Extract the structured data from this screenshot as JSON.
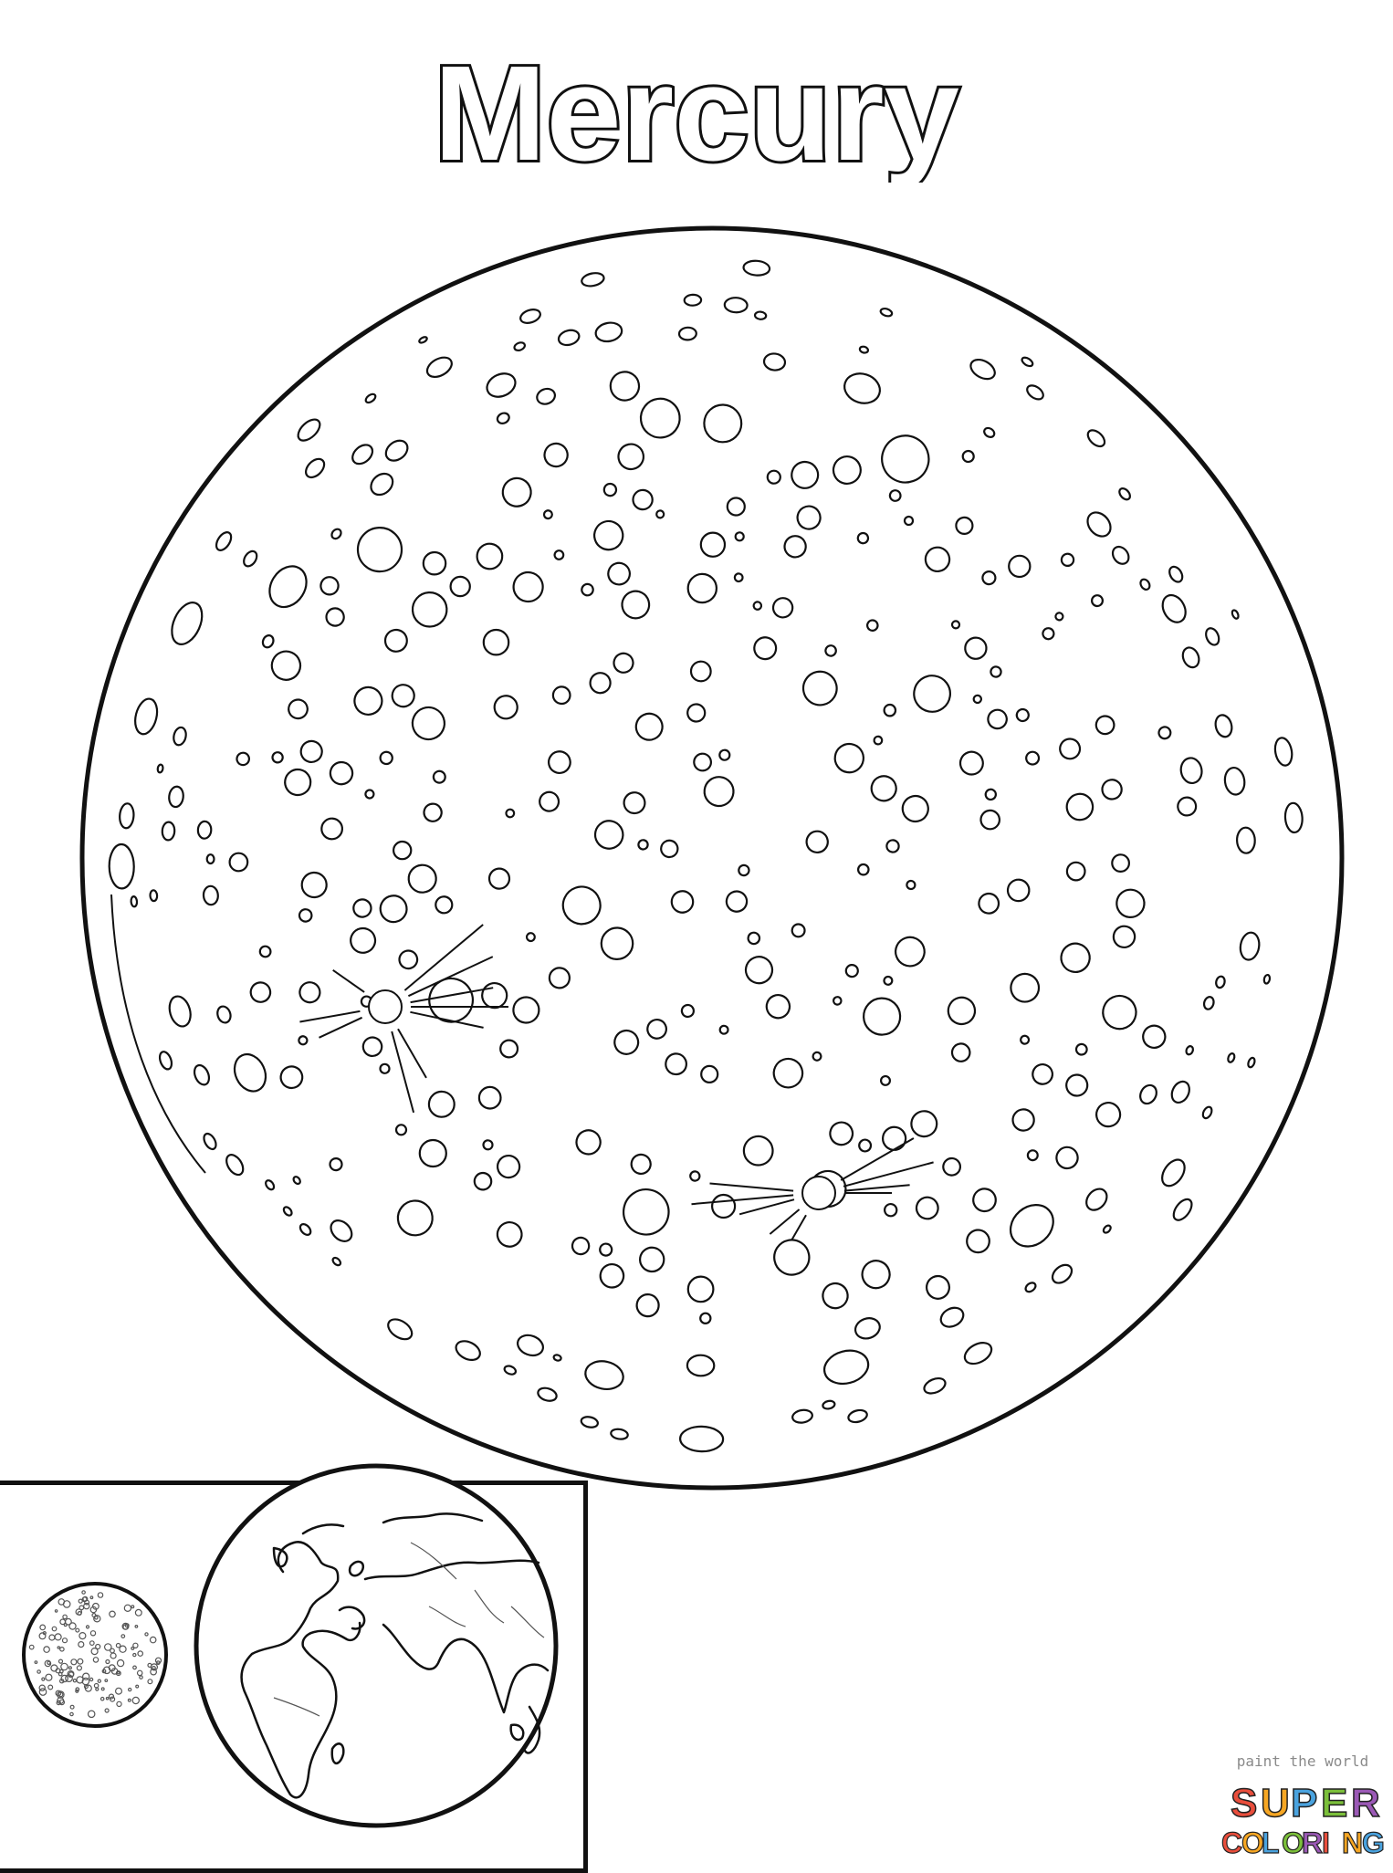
{
  "page": {
    "title": "Mercury"
  },
  "comparison": {
    "left_planet": "mercury-small-icon",
    "right_planet": "earth-icon"
  },
  "watermark": {
    "tagline": "paint the world",
    "line1": "SUPER",
    "line2": "COLORING",
    "colors": [
      "#e94e3c",
      "#f6a623",
      "#4aa3df",
      "#7bbf3a",
      "#9b59b6"
    ]
  }
}
